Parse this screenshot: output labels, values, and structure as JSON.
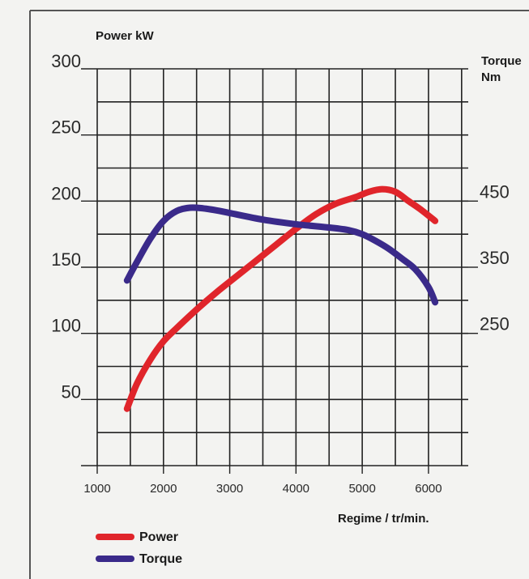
{
  "chart_data": {
    "type": "line",
    "left_axis_title": "Power kW",
    "right_axis_title_line1": "Torque",
    "right_axis_title_line2": "Nm",
    "xlabel": "Regime / tr/min.",
    "x_ticks": [
      "1000",
      "2000",
      "3000",
      "4000",
      "5000",
      "6000"
    ],
    "y_left_ticks": [
      "50",
      "100",
      "150",
      "200",
      "250",
      "300"
    ],
    "y_right_ticks": [
      "250",
      "350",
      "450"
    ],
    "xlim": [
      1000,
      6600
    ],
    "ylim_left": [
      0,
      300
    ],
    "ylim_right": [
      50,
      650
    ],
    "grid": true,
    "legend_position": "bottom-left",
    "series": [
      {
        "name": "Power",
        "axis": "left",
        "color": "#e0252b",
        "x": [
          1450,
          1600,
          1800,
          2000,
          2200,
          2500,
          2800,
          3100,
          3400,
          3700,
          4000,
          4300,
          4600,
          4900,
          5100,
          5300,
          5500,
          5700,
          5900,
          6100
        ],
        "y": [
          43,
          62,
          80,
          94,
          104,
          118,
          131,
          143,
          155,
          167,
          179,
          190,
          198,
          203,
          207,
          209,
          207,
          200,
          193,
          185
        ]
      },
      {
        "name": "Torque",
        "axis": "right",
        "color": "#3a2a8a",
        "x": [
          1450,
          1600,
          1800,
          2000,
          2200,
          2400,
          2600,
          2800,
          3000,
          3500,
          4000,
          4500,
          4800,
          5000,
          5200,
          5400,
          5600,
          5800,
          6000,
          6100
        ],
        "y": [
          330,
          358,
          393,
          420,
          435,
          440,
          439,
          436,
          432,
          422,
          415,
          410,
          406,
          400,
          390,
          378,
          363,
          347,
          320,
          297
        ]
      }
    ]
  }
}
